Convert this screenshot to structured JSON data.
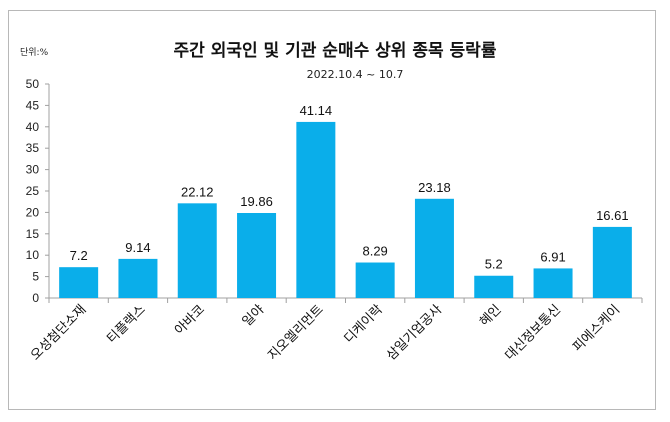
{
  "chart_data": {
    "type": "bar",
    "title": "주간 외국인 및 기관  순매수 상위 종목 등락률",
    "subtitle": "2022.10.4 ~ 10.7",
    "unit_label": "단위:%",
    "categories": [
      "오성첨단소재",
      "티플랙스",
      "아바코",
      "일야",
      "지오엘리먼트",
      "디케이락",
      "삼일기업공사",
      "혜인",
      "대신정보통신",
      "피에스케이"
    ],
    "values": [
      7.2,
      9.14,
      22.12,
      19.86,
      41.14,
      8.29,
      23.18,
      5.2,
      6.91,
      16.61
    ],
    "value_labels": [
      "7.2",
      "9.14",
      "22.12",
      "19.86",
      "41.14",
      "8.29",
      "23.18",
      "5.2",
      "6.91",
      "16.61"
    ],
    "ylim": [
      0,
      50
    ],
    "yticks": [
      "0",
      "5",
      "10",
      "15",
      "20",
      "25",
      "30",
      "35",
      "40",
      "45",
      "50"
    ],
    "grid": false,
    "legend": "none",
    "colors": {
      "bar": "#0AAEEA",
      "axis": "#a0a0a0"
    }
  }
}
